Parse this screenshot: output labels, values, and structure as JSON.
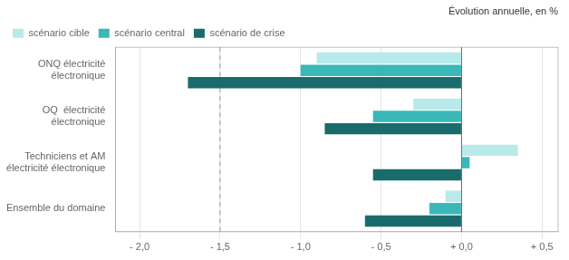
{
  "chart_data": {
    "type": "bar",
    "orientation": "horizontal",
    "title": "Évolution annuelle, en %",
    "categories": [
      "ONQ électricité\nélectronique",
      "OQ  électricité\nélectronique",
      "Techniciens et AM\nélectricité électronique",
      "Ensemble du domaine"
    ],
    "series": [
      {
        "name": "scénario cible",
        "color": "#b8eaea",
        "values": [
          -0.9,
          -0.3,
          0.35,
          -0.1
        ]
      },
      {
        "name": "scénario central",
        "color": "#3ab8b8",
        "values": [
          -1.0,
          -0.55,
          0.05,
          -0.2
        ]
      },
      {
        "name": "scénario de crise",
        "color": "#1a6b6b",
        "values": [
          -1.7,
          -0.85,
          -0.55,
          -0.6
        ]
      }
    ],
    "xlim": [
      -2.15,
      0.6
    ],
    "xticks": [
      {
        "value": -2.0,
        "label": "- 2,0"
      },
      {
        "value": -1.5,
        "label": "- 1,5"
      },
      {
        "value": -1.0,
        "label": "- 1,0"
      },
      {
        "value": -0.5,
        "label": "- 0,5"
      },
      {
        "value": 0.0,
        "label": "+ 0,0"
      },
      {
        "value": 0.5,
        "label": "+ 0,5"
      }
    ],
    "vlines": [
      {
        "x": -1.5,
        "line_style": "dashed"
      },
      {
        "x": 0,
        "line_style": "solid"
      }
    ],
    "grid": true,
    "legend": "upper left"
  }
}
